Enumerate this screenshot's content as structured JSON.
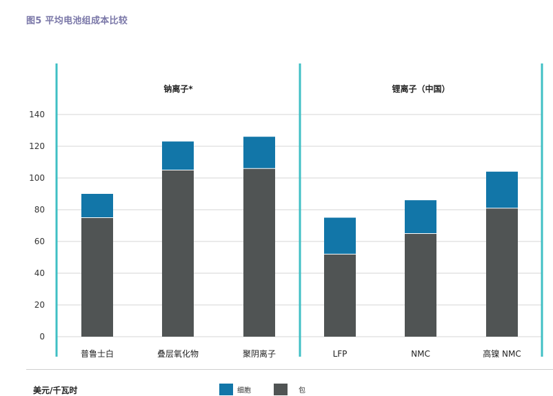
{
  "title": "图5 平均电池组成本比较",
  "chart_data": {
    "type": "bar",
    "stacked": true,
    "categories": [
      "普鲁士白",
      "叠层氧化物",
      "聚阴离子",
      "LFP",
      "NMC",
      "高镍 NMC"
    ],
    "groups": [
      {
        "label": "钠离子*",
        "categories": [
          "普鲁士白",
          "叠层氧化物",
          "聚阴离子"
        ]
      },
      {
        "label": "锂离子（中国）",
        "categories": [
          "LFP",
          "NMC",
          "高镍 NMC"
        ]
      }
    ],
    "series": [
      {
        "name": "包",
        "color": "#505454",
        "values": [
          75,
          105,
          106,
          52,
          65,
          81
        ]
      },
      {
        "name": "细胞",
        "color": "#1276a8",
        "values": [
          15,
          18,
          20,
          23,
          21,
          23
        ]
      }
    ],
    "ylim": [
      0,
      140
    ],
    "yticks": [
      0,
      20,
      40,
      60,
      80,
      100,
      120,
      140
    ],
    "ylabel": "美元/千瓦时",
    "grid": true,
    "legend_position": "bottom"
  },
  "legend": [
    {
      "label": "细胞",
      "color": "#1276a8"
    },
    {
      "label": "包",
      "color": "#505454"
    }
  ],
  "colors": {
    "accent_line": "#3fbfc4",
    "grid": "#d4d4d4",
    "title": "#7a77a8"
  }
}
